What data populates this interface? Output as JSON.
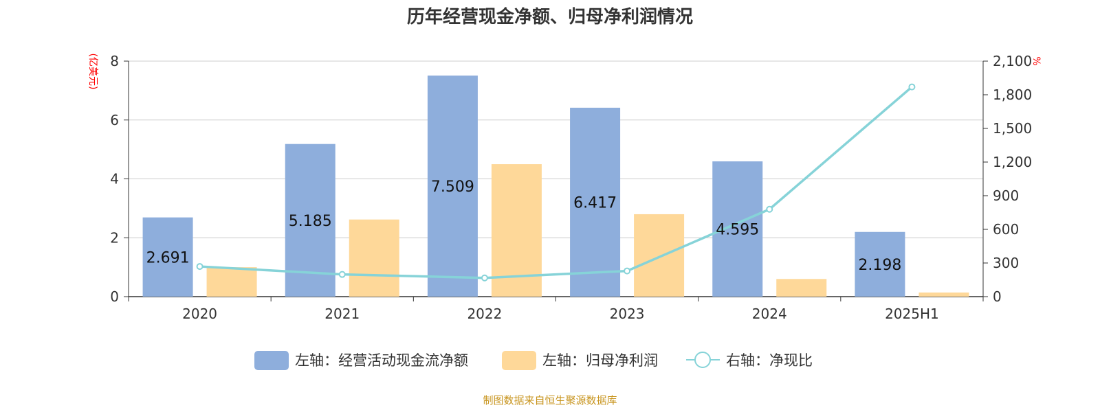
{
  "chart_data": {
    "type": "bar",
    "title": "历年经营现金净额、归母净利润情况",
    "ylabel_left": "(亿美元)",
    "ylabel_right": "%",
    "categories": [
      "2020",
      "2021",
      "2022",
      "2023",
      "2024",
      "2025H1"
    ],
    "ylim_left": [
      0,
      8
    ],
    "ylim_right": [
      0,
      2100
    ],
    "yticks_left": [
      "0",
      "2",
      "4",
      "6",
      "8"
    ],
    "yticks_right": [
      "0",
      "300",
      "600",
      "900",
      "1,200",
      "1,500",
      "1,800",
      "2,100"
    ],
    "series": [
      {
        "name": "左轴：经营活动现金流净额",
        "type": "bar",
        "axis": "left",
        "color": "#8eaedc",
        "values": [
          2.691,
          5.185,
          7.509,
          6.417,
          4.595,
          2.198
        ],
        "labels": [
          "2.691",
          "5.185",
          "7.509",
          "6.417",
          "4.595",
          "2.198"
        ]
      },
      {
        "name": "左轴：归母净利润",
        "type": "bar",
        "axis": "left",
        "color": "#fed899",
        "values": [
          1.0,
          2.62,
          4.5,
          2.8,
          0.6,
          0.14
        ]
      },
      {
        "name": "右轴：净现比",
        "type": "line",
        "axis": "right",
        "color": "#86d3d8",
        "values": [
          269,
          198,
          167,
          229,
          779,
          1870
        ]
      }
    ],
    "grid": true,
    "legend_position": "bottom-center"
  },
  "source": "制图数据来自恒生聚源数据库"
}
